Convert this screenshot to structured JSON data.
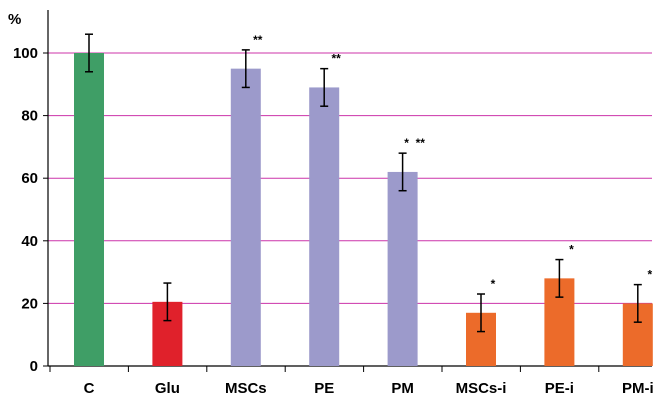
{
  "chart_data": {
    "type": "bar",
    "y_unit_label": "%",
    "categories": [
      "C",
      "Glu",
      "MSCs",
      "PE",
      "PM",
      "MSCs-i",
      "PE-i",
      "PM-i"
    ],
    "values": [
      100,
      20.5,
      95,
      89,
      62,
      17,
      28,
      20
    ],
    "error": [
      6,
      6,
      6,
      6,
      6,
      6,
      6,
      6
    ],
    "annotations": [
      "",
      "",
      "**",
      "**",
      "*  **",
      "*",
      "*",
      "*"
    ],
    "colors": [
      "#3f9e66",
      "#e0212b",
      "#9c9acb",
      "#9c9acb",
      "#9c9acb",
      "#ec6b2a",
      "#ec6b2a",
      "#ec6b2a"
    ],
    "ylim": [
      0,
      100
    ],
    "yticks": [
      0,
      20,
      40,
      60,
      80,
      100
    ],
    "grid": true,
    "gridline_color": "#cc33aa",
    "legend": "none"
  }
}
